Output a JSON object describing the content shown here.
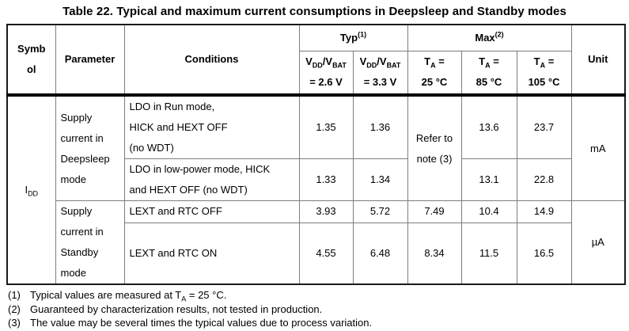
{
  "page": {
    "title": "Table 22. Typical and maximum current consumptions in Deepsleep and Standby modes"
  },
  "table": {
    "header": {
      "symbol": "Symb\nol",
      "parameter": "Parameter",
      "conditions": "Conditions",
      "typ_group": "Typ^{(1)}",
      "max_group": "Max^{(2)}",
      "unit": "Unit",
      "typ_cols": [
        "V_{DD}/V_{BAT}\n= 2.6 V",
        "V_{DD}/V_{BAT}\n= 3.3 V"
      ],
      "max_cols": [
        "T_{A} =\n25 °C",
        "T_{A} =\n85 °C",
        "T_{A} =\n105 °C"
      ]
    },
    "body": {
      "symbol": "I_{DD}",
      "deepsleep": {
        "parameter": "Supply current in Deepsleep mode",
        "refer_note": "Refer to\nnote (3)",
        "unit": "mA",
        "row1": {
          "conditions": "LDO in Run mode,\nHICK and HEXT OFF\n(no WDT)",
          "typ_26": "1.35",
          "typ_33": "1.36",
          "max_85": "13.6",
          "max_105": "23.7"
        },
        "row2": {
          "conditions": "LDO in low-power mode, HICK\nand HEXT OFF (no WDT)",
          "typ_26": "1.33",
          "typ_33": "1.34",
          "max_85": "13.1",
          "max_105": "22.8"
        }
      },
      "standby": {
        "parameter": "Supply current in Standby mode",
        "unit": "µA",
        "row1": {
          "conditions": "LEXT and RTC OFF",
          "typ_26": "3.93",
          "typ_33": "5.72",
          "max_25": "7.49",
          "max_85": "10.4",
          "max_105": "14.9"
        },
        "row2": {
          "conditions": "LEXT and RTC ON",
          "typ_26": "4.55",
          "typ_33": "6.48",
          "max_25": "8.34",
          "max_85": "11.5",
          "max_105": "16.5"
        }
      }
    }
  },
  "notes": [
    {
      "num": "(1)",
      "text": "Typical values are measured at T_{A} = 25 °C."
    },
    {
      "num": "(2)",
      "text": "Guaranteed by characterization results, not tested in production."
    },
    {
      "num": "(3)",
      "text": "The value may be several times the typical values due to process variation."
    }
  ]
}
